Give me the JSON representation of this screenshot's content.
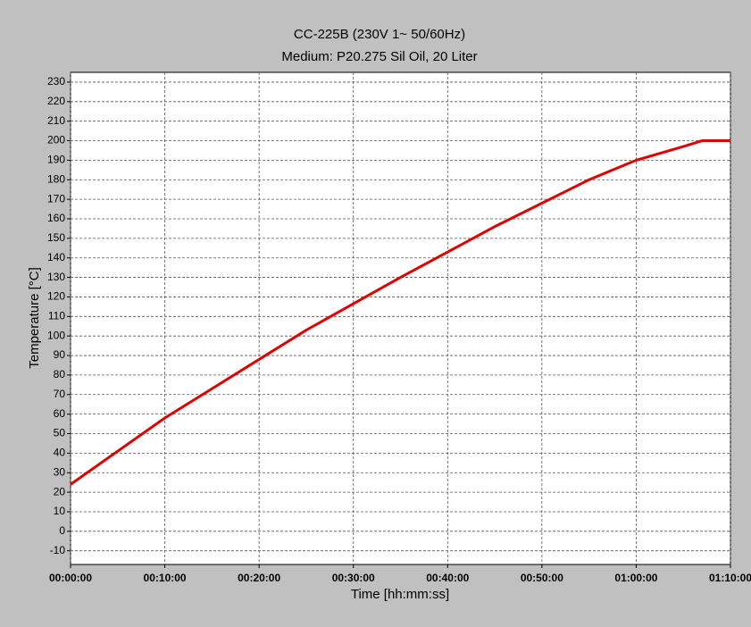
{
  "chart_data": {
    "type": "line",
    "title": "CC-225B (230V 1~ 50/60Hz)",
    "subtitle": "Medium: P20.275 Sil Oil, 20 Liter",
    "x_label": "Time [hh:mm:ss]",
    "y_label": "Temperature [°C]",
    "x": [
      0,
      300,
      600,
      900,
      1200,
      1500,
      1800,
      2100,
      2400,
      2700,
      3000,
      3300,
      3600,
      3900,
      4020,
      4200
    ],
    "values": [
      24,
      41,
      58,
      73,
      88,
      103,
      116.5,
      130,
      143,
      156,
      168,
      180,
      190,
      197,
      200,
      200
    ],
    "color": "#e00000",
    "xlim": [
      0,
      4200
    ],
    "xticks": [
      {
        "value": 0,
        "label": "00:00:00"
      },
      {
        "value": 600,
        "label": "00:10:00"
      },
      {
        "value": 1200,
        "label": "00:20:00"
      },
      {
        "value": 1800,
        "label": "00:30:00"
      },
      {
        "value": 2400,
        "label": "00:40:00"
      },
      {
        "value": 3000,
        "label": "00:50:00"
      },
      {
        "value": 3600,
        "label": "01:00:00"
      },
      {
        "value": 4200,
        "label": "01:10:00"
      }
    ],
    "ylim": [
      -17,
      235
    ],
    "yticks": [
      -10,
      0,
      10,
      20,
      30,
      40,
      50,
      60,
      70,
      80,
      90,
      100,
      110,
      120,
      130,
      140,
      150,
      160,
      170,
      180,
      190,
      200,
      210,
      220,
      230
    ],
    "grid": true
  }
}
